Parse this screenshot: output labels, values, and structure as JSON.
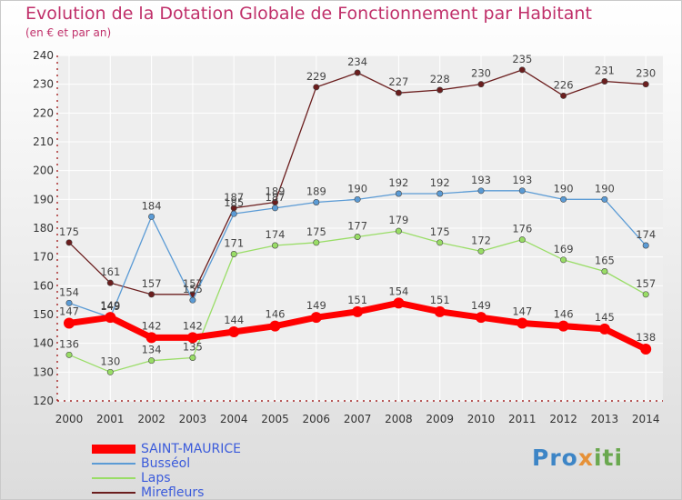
{
  "title": "Evolution de la Dotation Globale de Fonctionnement par Habitant",
  "subtitle": "(en € et par an)",
  "logo": {
    "part1": "Pro",
    "part2": "x",
    "part3": "iti"
  },
  "colors": {
    "saint_maurice": "#ff0000",
    "busseol": "#5b9bd5",
    "laps": "#99dd66",
    "mirefleurs": "#6b1e1e",
    "axis": "#990000",
    "grid": "#ffffff",
    "title": "#c0306a",
    "legend_text": "#3b5bdb"
  },
  "chart_data": {
    "type": "line",
    "title": "Evolution de la Dotation Globale de Fonctionnement par Habitant",
    "subtitle": "(en € et par an)",
    "xlabel": "",
    "ylabel": "",
    "ylim": [
      120,
      240
    ],
    "yticks": [
      120,
      130,
      140,
      150,
      160,
      170,
      180,
      190,
      200,
      210,
      220,
      230,
      240
    ],
    "grid": true,
    "legend_position": "bottom-left",
    "categories": [
      "2000",
      "2001",
      "2002",
      "2003",
      "2004",
      "2005",
      "2006",
      "2007",
      "2008",
      "2009",
      "2010",
      "2011",
      "2012",
      "2013",
      "2014"
    ],
    "series": [
      {
        "name": "Mirefleurs",
        "color": "#6b1e1e",
        "values": [
          175,
          161,
          157,
          157,
          187,
          189,
          229,
          234,
          227,
          228,
          230,
          235,
          226,
          231,
          230
        ]
      },
      {
        "name": "Busséol",
        "color": "#5b9bd5",
        "values": [
          154,
          149,
          184,
          155,
          185,
          187,
          189,
          190,
          192,
          192,
          193,
          193,
          190,
          190,
          174
        ]
      },
      {
        "name": "Laps",
        "color": "#99dd66",
        "values": [
          136,
          130,
          134,
          135,
          171,
          174,
          175,
          177,
          179,
          175,
          172,
          176,
          169,
          165,
          157
        ]
      },
      {
        "name": "SAINT-MAURICE",
        "color": "#ff0000",
        "values": [
          147,
          149,
          142,
          142,
          144,
          146,
          149,
          151,
          154,
          151,
          149,
          147,
          146,
          145,
          138
        ]
      }
    ]
  },
  "legend": [
    {
      "name": "SAINT-MAURICE",
      "color": "#ff0000"
    },
    {
      "name": "Busséol",
      "color": "#5b9bd5"
    },
    {
      "name": "Laps",
      "color": "#99dd66"
    },
    {
      "name": "Mirefleurs",
      "color": "#6b1e1e"
    }
  ]
}
